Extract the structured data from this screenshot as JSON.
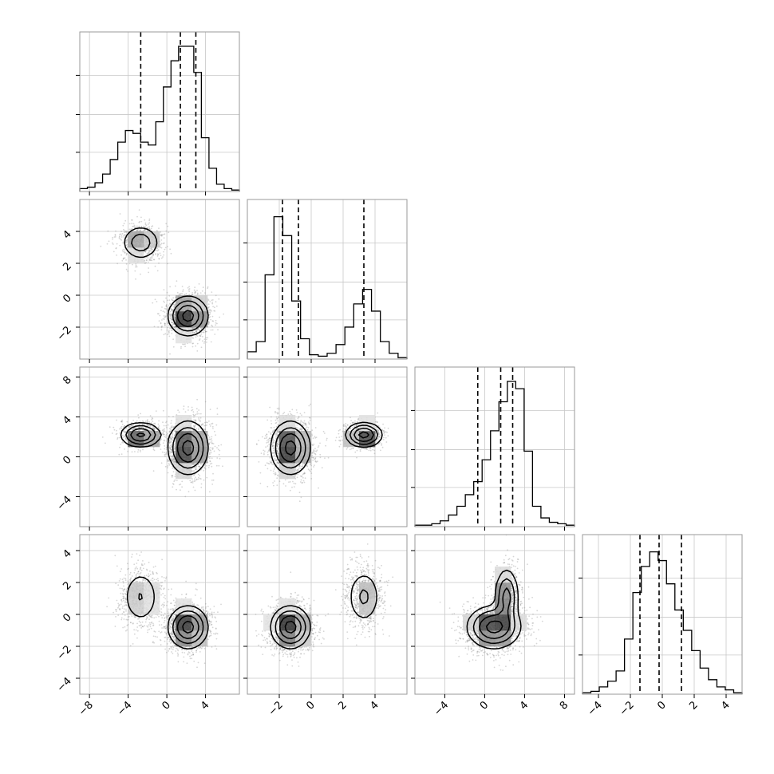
{
  "chart_data": {
    "type": "corner",
    "grid": true,
    "dimensions": [
      {
        "range": [
          -9,
          7.5
        ],
        "ticks": [
          "−8",
          "−4",
          "0",
          "4"
        ],
        "tick_values": [
          -8,
          -4,
          0,
          4
        ],
        "quantiles": [
          -2.7,
          1.4,
          3.0
        ],
        "hist": [
          0.02,
          0.03,
          0.06,
          0.12,
          0.22,
          0.34,
          0.42,
          0.4,
          0.34,
          0.32,
          0.48,
          0.72,
          0.9,
          1.0,
          1.0,
          0.82,
          0.37,
          0.16,
          0.05,
          0.02,
          0.01
        ]
      },
      {
        "range": [
          -4,
          6
        ],
        "ticks": [
          "−2",
          "0",
          "2",
          "4"
        ],
        "tick_values": [
          -2,
          0,
          2,
          4
        ],
        "quantiles": [
          -1.8,
          -0.8,
          3.3
        ],
        "hist": [
          0.05,
          0.12,
          0.58,
          0.98,
          0.85,
          0.4,
          0.14,
          0.03,
          0.02,
          0.04,
          0.1,
          0.22,
          0.38,
          0.48,
          0.33,
          0.12,
          0.04,
          0.01
        ]
      },
      {
        "range": [
          -7,
          9
        ],
        "ticks": [
          "−4",
          "0",
          "4",
          "8"
        ],
        "tick_values": [
          -4,
          0,
          4,
          8
        ],
        "quantiles": [
          -0.7,
          1.6,
          2.8
        ],
        "hist": [
          0.01,
          0.01,
          0.02,
          0.04,
          0.08,
          0.14,
          0.22,
          0.31,
          0.46,
          0.66,
          0.86,
          1.0,
          0.95,
          0.52,
          0.14,
          0.06,
          0.03,
          0.02,
          0.01
        ]
      },
      {
        "range": [
          -5,
          5
        ],
        "ticks": [
          "−4",
          "−2",
          "0",
          "2",
          "4"
        ],
        "tick_values": [
          -4,
          -2,
          0,
          2,
          4
        ],
        "quantiles": [
          -1.4,
          -0.2,
          1.2
        ],
        "hist": [
          0.01,
          0.02,
          0.05,
          0.09,
          0.16,
          0.38,
          0.7,
          0.88,
          0.98,
          0.92,
          0.76,
          0.58,
          0.44,
          0.3,
          0.18,
          0.1,
          0.05,
          0.03,
          0.01
        ]
      }
    ],
    "modes": [
      {
        "weight": 0.3,
        "mean": [
          -2.7,
          3.3,
          2.2,
          1.1
        ],
        "sd": [
          1.0,
          0.55,
          0.6,
          0.9
        ]
      },
      {
        "weight": 0.7,
        "mean": [
          2.2,
          -1.3,
          0.9,
          -0.8
        ],
        "sd": [
          1.0,
          0.6,
          1.3,
          0.65
        ]
      }
    ],
    "points_per_panel": 2400
  }
}
